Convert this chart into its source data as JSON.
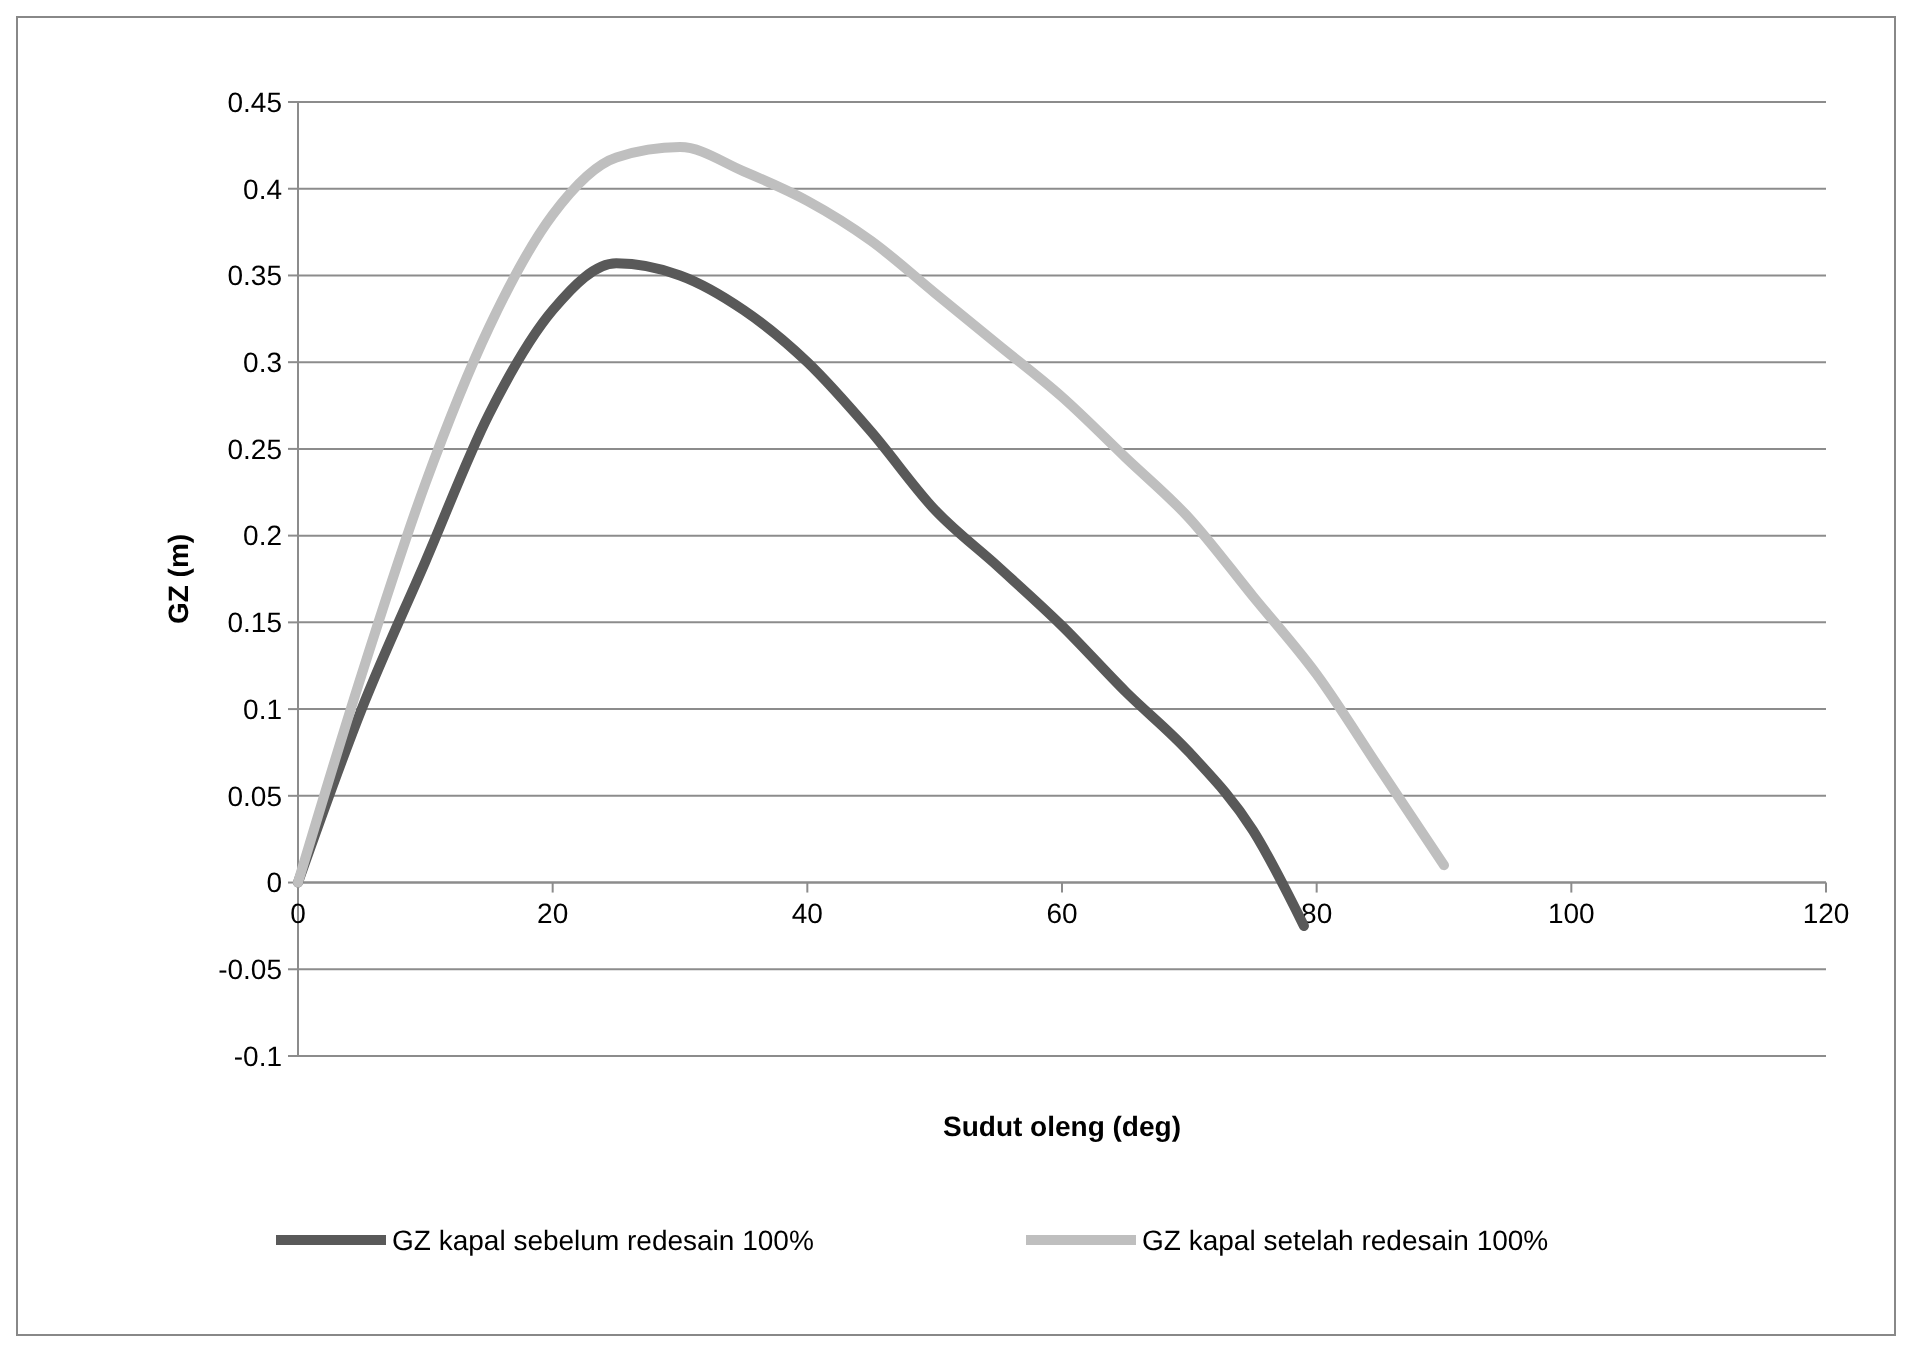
{
  "chart_data": {
    "type": "line",
    "xlabel": "Sudut oleng (deg)",
    "ylabel": "GZ (m)",
    "xlim": [
      0,
      120
    ],
    "xticks": [
      0,
      20,
      40,
      60,
      80,
      100,
      120
    ],
    "ylim": [
      -0.1,
      0.45
    ],
    "yticks": [
      -0.1,
      -0.05,
      0,
      0.05,
      0.1,
      0.15,
      0.2,
      0.25,
      0.3,
      0.35,
      0.4,
      0.45
    ],
    "grid": "y",
    "legend": "bottom",
    "marker": "none",
    "line_style": "solid",
    "series": [
      {
        "name": "GZ kapal sebelum redesain 100%",
        "color": "#595959",
        "x": [
          0,
          5,
          10,
          15,
          20,
          25,
          30,
          35,
          40,
          45,
          50,
          55,
          60,
          65,
          70,
          75,
          79
        ],
        "values": [
          0,
          0.1,
          0.185,
          0.27,
          0.33,
          0.357,
          0.35,
          0.33,
          0.3,
          0.26,
          0.215,
          0.182,
          0.148,
          0.11,
          0.075,
          0.03,
          -0.025
        ]
      },
      {
        "name": "GZ kapal setelah redesain 100%",
        "color": "#bfbfbf",
        "x": [
          0,
          5,
          10,
          15,
          20,
          25,
          30,
          35,
          40,
          45,
          50,
          55,
          60,
          65,
          70,
          75,
          80,
          85,
          90
        ],
        "values": [
          0,
          0.12,
          0.23,
          0.32,
          0.385,
          0.418,
          0.424,
          0.41,
          0.393,
          0.37,
          0.34,
          0.31,
          0.28,
          0.245,
          0.21,
          0.165,
          0.12,
          0.065,
          0.01
        ]
      }
    ]
  }
}
